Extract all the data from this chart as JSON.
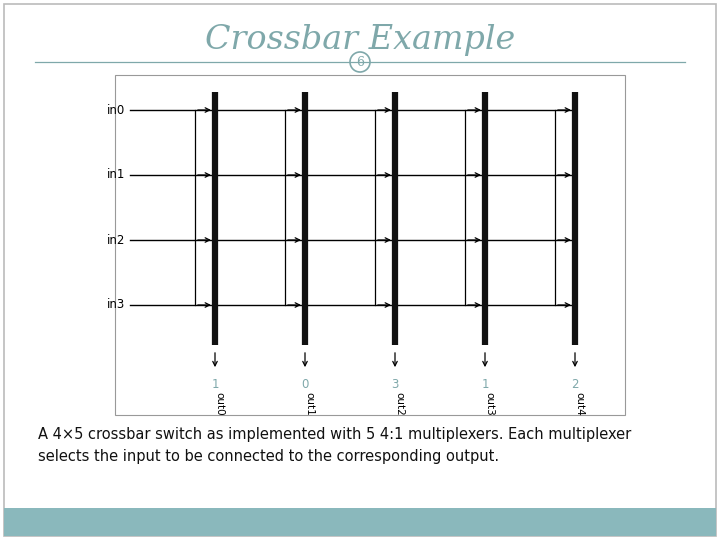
{
  "title": "Crossbar Example",
  "title_num": "6",
  "title_color": "#7fa8aa",
  "bg_color": "#ffffff",
  "footer_color": "#8ab8bc",
  "border_color": "#bbbbbb",
  "input_labels": [
    "in0",
    "in1",
    "in2",
    "in3"
  ],
  "output_labels": [
    "out0",
    "out1",
    "out2",
    "out3",
    "out4"
  ],
  "sel_values": [
    1,
    0,
    3,
    1,
    2
  ],
  "num_inputs": 4,
  "num_outputs": 5,
  "description_line1": "A 4×5 crossbar switch as implemented with 5 4:1 multiplexers. Each multiplexer",
  "description_line2": "selects the input to be connected to the corresponding output.",
  "text_color": "#111111",
  "mux_bar_color": "#111111",
  "diagram_border_color": "#999999",
  "title_fontsize": 24,
  "desc_fontsize": 10.5,
  "in_label_fontsize": 8.5,
  "sel_label_fontsize": 8.5,
  "out_label_fontsize": 7.5
}
